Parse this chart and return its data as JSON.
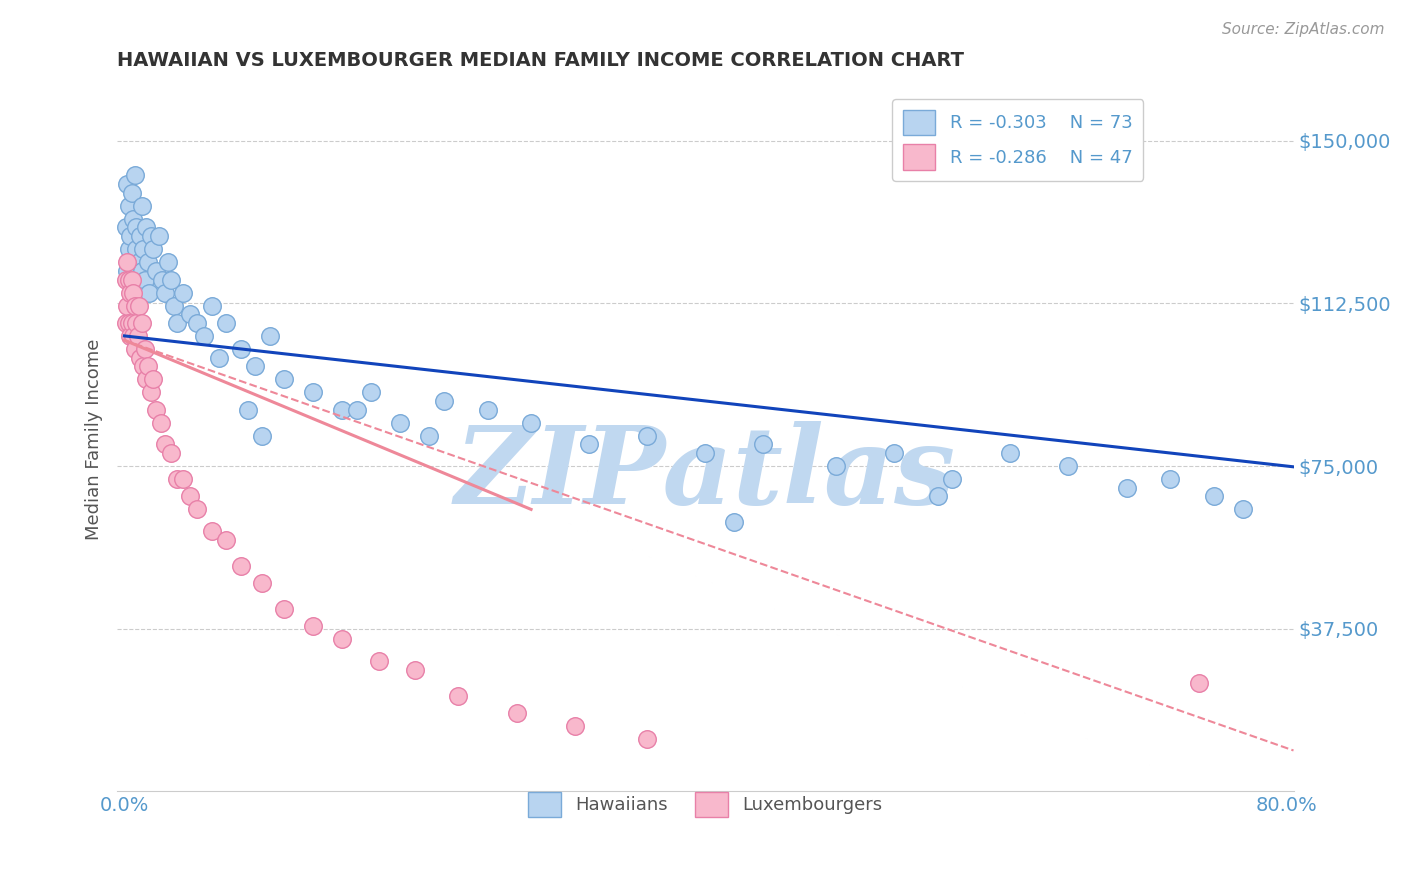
{
  "title": "HAWAIIAN VS LUXEMBOURGER MEDIAN FAMILY INCOME CORRELATION CHART",
  "source_text": "Source: ZipAtlas.com",
  "ylabel": "Median Family Income",
  "xlim": [
    -0.005,
    0.805
  ],
  "ylim": [
    0,
    162500
  ],
  "yticks": [
    0,
    37500,
    75000,
    112500,
    150000
  ],
  "ytick_labels": [
    "",
    "$37,500",
    "$75,000",
    "$112,500",
    "$150,000"
  ],
  "xtick_vals": [
    0.0,
    0.8
  ],
  "xtick_labels": [
    "0.0%",
    "80.0%"
  ],
  "hawaiian_color": "#b8d4f0",
  "hawaiian_edge_color": "#7aaad8",
  "luxembourger_color": "#f8b8cc",
  "luxembourger_edge_color": "#e880a8",
  "trend_hawaiian_color": "#1144bb",
  "trend_luxembourger_color": "#ee8899",
  "legend_label_hawaiian": "R = -0.303    N = 73",
  "legend_label_luxembourger": "R = -0.286    N = 47",
  "legend_label_short_hawaiian": "Hawaiians",
  "legend_label_short_luxembourger": "Luxembourgers",
  "watermark": "ZIPatlas",
  "watermark_color": "#c0d8f0",
  "background_color": "#ffffff",
  "grid_color": "#cccccc",
  "axis_label_color": "#5599cc",
  "title_color": "#333333",
  "hawaiian_trend_x0": 0.0,
  "hawaiian_trend_y0": 105000,
  "hawaiian_trend_x1": 0.8,
  "hawaiian_trend_y1": 75000,
  "luxembourger_trend_x0": 0.0,
  "luxembourger_trend_y0": 104000,
  "luxembourger_trend_x1": 0.8,
  "luxembourger_trend_y1": 10000,
  "hawaiian_x": [
    0.001,
    0.002,
    0.002,
    0.003,
    0.003,
    0.004,
    0.004,
    0.005,
    0.005,
    0.006,
    0.006,
    0.007,
    0.007,
    0.008,
    0.008,
    0.009,
    0.01,
    0.01,
    0.011,
    0.012,
    0.012,
    0.013,
    0.014,
    0.015,
    0.016,
    0.017,
    0.018,
    0.02,
    0.022,
    0.024,
    0.026,
    0.028,
    0.03,
    0.032,
    0.034,
    0.036,
    0.04,
    0.045,
    0.05,
    0.055,
    0.06,
    0.065,
    0.07,
    0.08,
    0.09,
    0.1,
    0.11,
    0.13,
    0.15,
    0.17,
    0.19,
    0.22,
    0.25,
    0.28,
    0.32,
    0.36,
    0.4,
    0.44,
    0.49,
    0.53,
    0.57,
    0.61,
    0.65,
    0.69,
    0.72,
    0.75,
    0.77,
    0.085,
    0.095,
    0.16,
    0.21,
    0.42,
    0.56
  ],
  "hawaiian_y": [
    130000,
    120000,
    140000,
    125000,
    135000,
    118000,
    128000,
    122000,
    138000,
    115000,
    132000,
    119000,
    142000,
    125000,
    130000,
    118000,
    122000,
    115000,
    128000,
    120000,
    135000,
    125000,
    118000,
    130000,
    122000,
    115000,
    128000,
    125000,
    120000,
    128000,
    118000,
    115000,
    122000,
    118000,
    112000,
    108000,
    115000,
    110000,
    108000,
    105000,
    112000,
    100000,
    108000,
    102000,
    98000,
    105000,
    95000,
    92000,
    88000,
    92000,
    85000,
    90000,
    88000,
    85000,
    80000,
    82000,
    78000,
    80000,
    75000,
    78000,
    72000,
    78000,
    75000,
    70000,
    72000,
    68000,
    65000,
    88000,
    82000,
    88000,
    82000,
    62000,
    68000
  ],
  "luxembourger_x": [
    0.001,
    0.001,
    0.002,
    0.002,
    0.003,
    0.003,
    0.004,
    0.004,
    0.005,
    0.005,
    0.006,
    0.006,
    0.007,
    0.007,
    0.008,
    0.009,
    0.01,
    0.011,
    0.012,
    0.013,
    0.014,
    0.015,
    0.016,
    0.018,
    0.02,
    0.022,
    0.025,
    0.028,
    0.032,
    0.036,
    0.04,
    0.045,
    0.05,
    0.06,
    0.07,
    0.08,
    0.095,
    0.11,
    0.13,
    0.15,
    0.175,
    0.2,
    0.23,
    0.27,
    0.31,
    0.36,
    0.74
  ],
  "luxembourger_y": [
    118000,
    108000,
    122000,
    112000,
    118000,
    108000,
    115000,
    105000,
    118000,
    108000,
    115000,
    105000,
    112000,
    102000,
    108000,
    105000,
    112000,
    100000,
    108000,
    98000,
    102000,
    95000,
    98000,
    92000,
    95000,
    88000,
    85000,
    80000,
    78000,
    72000,
    72000,
    68000,
    65000,
    60000,
    58000,
    52000,
    48000,
    42000,
    38000,
    35000,
    30000,
    28000,
    22000,
    18000,
    15000,
    12000,
    25000
  ]
}
